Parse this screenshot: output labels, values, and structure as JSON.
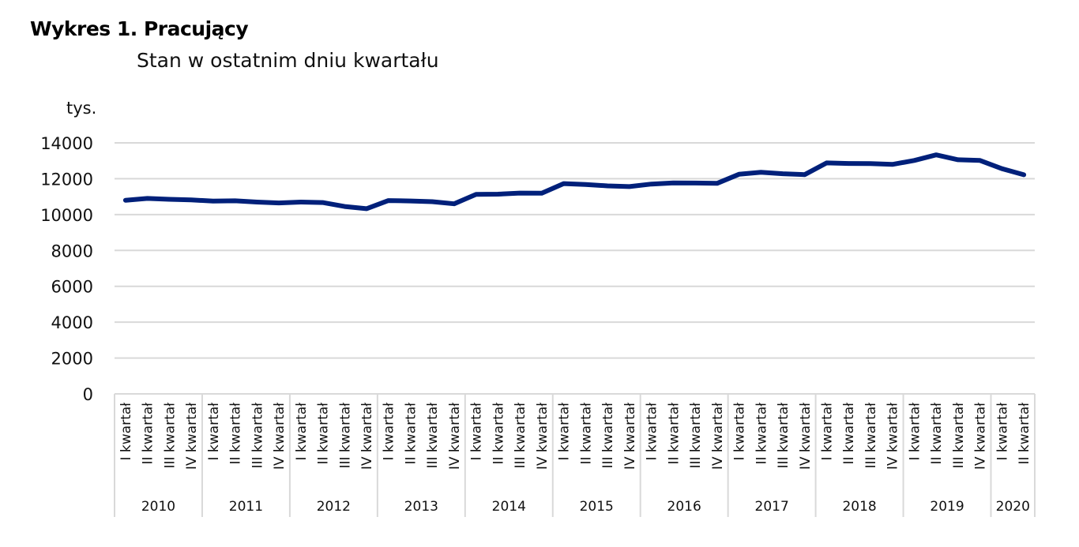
{
  "chart_data": {
    "type": "line",
    "title": "Wykres 1. Pracujący",
    "subtitle": "Stan w ostatnim dniu kwartału",
    "ylabel": "tys.",
    "xlabel": "",
    "ylim": [
      0,
      14000
    ],
    "yticks": [
      0,
      2000,
      4000,
      6000,
      8000,
      10000,
      12000,
      14000
    ],
    "grid": true,
    "legend": "none",
    "line_color": "#00207a",
    "quarter_labels": [
      "I kwartał",
      "II kwartał",
      "III kwartał",
      "IV kwartał"
    ],
    "years": [
      {
        "year": "2010",
        "quarters": 4
      },
      {
        "year": "2011",
        "quarters": 4
      },
      {
        "year": "2012",
        "quarters": 4
      },
      {
        "year": "2013",
        "quarters": 4
      },
      {
        "year": "2014",
        "quarters": 4
      },
      {
        "year": "2015",
        "quarters": 4
      },
      {
        "year": "2016",
        "quarters": 4
      },
      {
        "year": "2017",
        "quarters": 4
      },
      {
        "year": "2018",
        "quarters": 4
      },
      {
        "year": "2019",
        "quarters": 4
      },
      {
        "year": "2020",
        "quarters": 2
      }
    ],
    "values": [
      10800,
      10900,
      10850,
      10820,
      10750,
      10770,
      10700,
      10650,
      10700,
      10670,
      10450,
      10330,
      10780,
      10760,
      10720,
      10600,
      11130,
      11140,
      11200,
      11190,
      11730,
      11680,
      11600,
      11560,
      11700,
      11770,
      11760,
      11740,
      12250,
      12360,
      12280,
      12230,
      12880,
      12850,
      12840,
      12800,
      13020,
      13330,
      13060,
      13020,
      12560,
      12220
    ]
  }
}
